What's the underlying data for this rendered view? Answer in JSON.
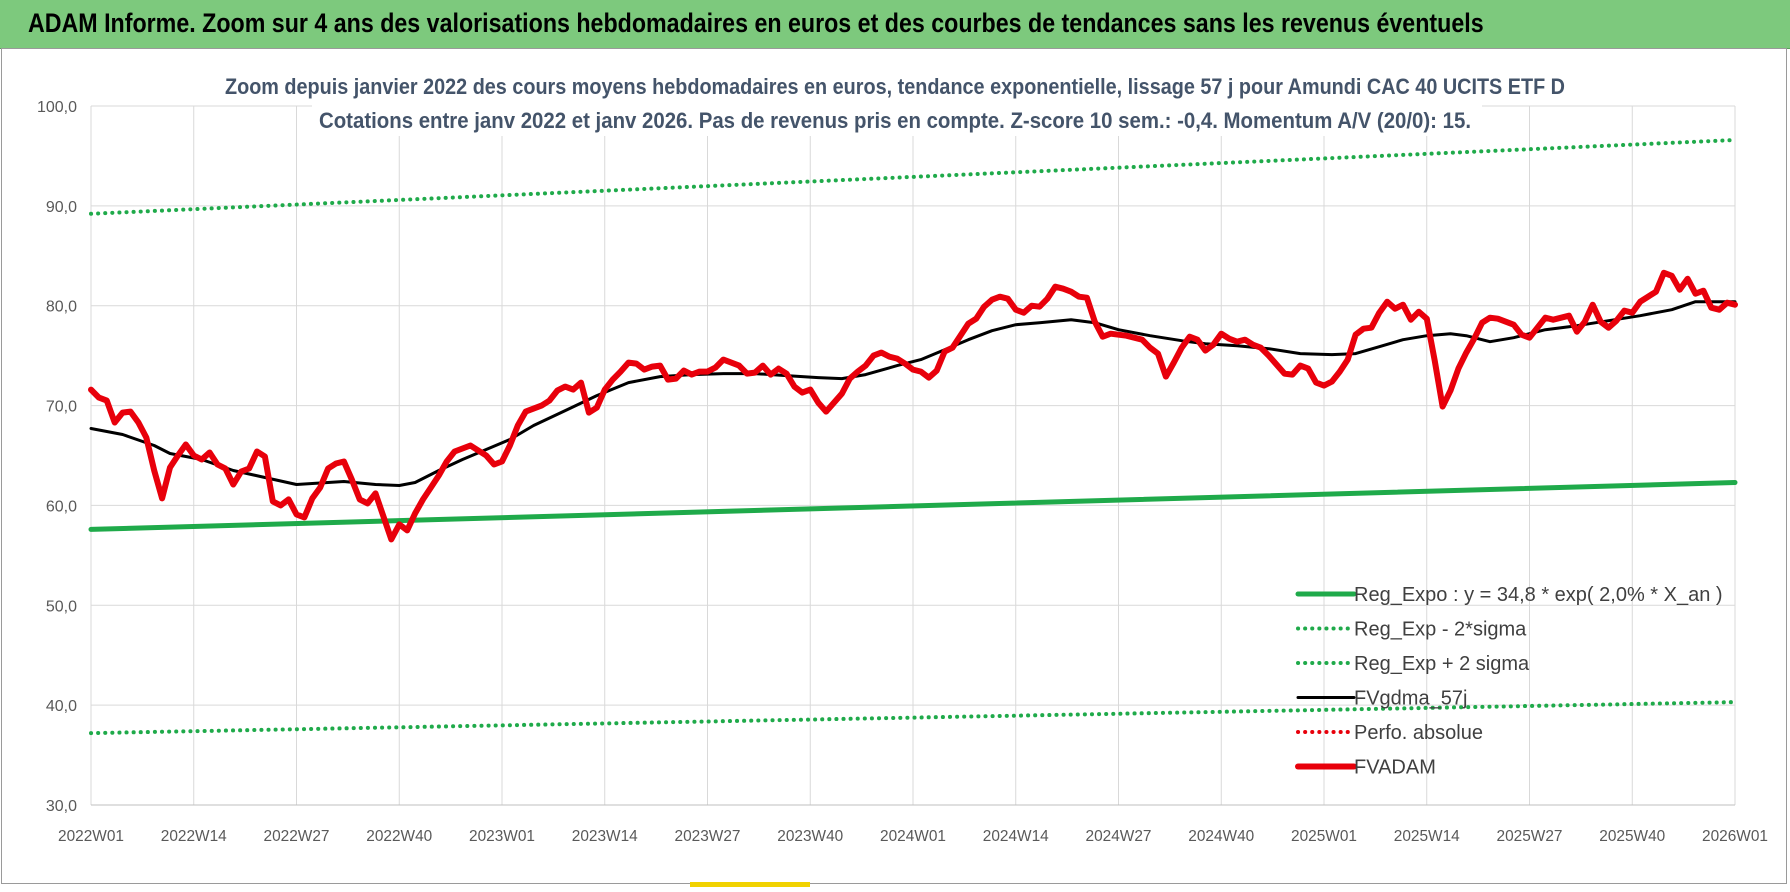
{
  "header": {
    "title": "ADAM Informe. Zoom sur 4 ans des valorisations hebdomadaires en euros et des courbes de tendances sans les revenus éventuels"
  },
  "chart_data": {
    "type": "line",
    "title": "Zoom depuis janvier 2022 des cours moyens hebdomadaires en euros, tendance exponentielle, lissage 57 j pour Amundi CAC 40 UCITS ETF D",
    "subtitle": "Cotations entre janv 2022 et janv 2026. Pas de revenus pris en compte. Z-score 10 sem.: -0,4. Momentum A/V (20/0): 15.",
    "xlabel": "",
    "ylabel": "",
    "ylim": [
      30,
      100
    ],
    "y_ticks": [
      "30,0",
      "40,0",
      "50,0",
      "60,0",
      "70,0",
      "80,0",
      "90,0",
      "100,0"
    ],
    "x_ticks": [
      "2022W01",
      "2022W14",
      "2022W27",
      "2022W40",
      "2023W01",
      "2023W14",
      "2023W27",
      "2023W40",
      "2024W01",
      "2024W14",
      "2024W27",
      "2024W40",
      "2025W01",
      "2025W14",
      "2025W27",
      "2025W40",
      "2026W01"
    ],
    "x_range_weeks": [
      0,
      208
    ],
    "grid": true,
    "legend_position": "bottom-right",
    "series": [
      {
        "name": "Reg_Expo : y = 34,8 * exp( 2,0% *  X_an )",
        "style": "solid",
        "color": "#1faa4a",
        "width": 5,
        "points": [
          [
            0,
            57.6
          ],
          [
            208,
            62.3
          ]
        ]
      },
      {
        "name": "Reg_Exp - 2*sigma",
        "style": "dotted",
        "color": "#1faa4a",
        "width": 4,
        "points": [
          [
            0,
            37.2
          ],
          [
            208,
            40.3
          ]
        ]
      },
      {
        "name": "Reg_Exp + 2 sigma",
        "style": "dotted",
        "color": "#1faa4a",
        "width": 4,
        "points": [
          [
            0,
            89.2
          ],
          [
            208,
            96.6
          ]
        ]
      },
      {
        "name": "FVgdma_57j",
        "style": "solid",
        "color": "#000000",
        "width": 3,
        "points": [
          [
            0,
            67.7
          ],
          [
            4,
            67.1
          ],
          [
            8,
            66.0
          ],
          [
            10,
            65.2
          ],
          [
            14,
            64.6
          ],
          [
            18,
            63.5
          ],
          [
            22,
            62.8
          ],
          [
            26,
            62.1
          ],
          [
            28,
            62.2
          ],
          [
            32,
            62.4
          ],
          [
            36,
            62.1
          ],
          [
            39,
            62.0
          ],
          [
            41,
            62.3
          ],
          [
            44,
            63.5
          ],
          [
            47,
            64.6
          ],
          [
            50,
            65.6
          ],
          [
            53,
            66.6
          ],
          [
            56,
            68.0
          ],
          [
            60,
            69.5
          ],
          [
            64,
            71.0
          ],
          [
            68,
            72.3
          ],
          [
            72,
            72.9
          ],
          [
            76,
            73.1
          ],
          [
            80,
            73.2
          ],
          [
            84,
            73.2
          ],
          [
            88,
            73.0
          ],
          [
            92,
            72.8
          ],
          [
            95,
            72.7
          ],
          [
            98,
            73.1
          ],
          [
            102,
            74.0
          ],
          [
            105,
            74.6
          ],
          [
            108,
            75.6
          ],
          [
            111,
            76.6
          ],
          [
            114,
            77.5
          ],
          [
            117,
            78.1
          ],
          [
            120,
            78.3
          ],
          [
            124,
            78.6
          ],
          [
            127,
            78.3
          ],
          [
            130,
            77.6
          ],
          [
            134,
            77.0
          ],
          [
            138,
            76.5
          ],
          [
            141,
            76.2
          ],
          [
            145,
            76.0
          ],
          [
            149,
            75.7
          ],
          [
            153,
            75.2
          ],
          [
            157,
            75.1
          ],
          [
            160,
            75.2
          ],
          [
            163,
            75.9
          ],
          [
            166,
            76.6
          ],
          [
            169,
            77.0
          ],
          [
            172,
            77.2
          ],
          [
            174,
            77.0
          ],
          [
            177,
            76.4
          ],
          [
            180,
            76.8
          ],
          [
            184,
            77.6
          ],
          [
            188,
            78.0
          ],
          [
            192,
            78.5
          ],
          [
            196,
            79.0
          ],
          [
            200,
            79.6
          ],
          [
            203,
            80.4
          ],
          [
            206,
            80.4
          ],
          [
            208,
            80.4
          ]
        ]
      },
      {
        "name": "Perfo. absolue",
        "style": "dotted",
        "color": "#e8000b",
        "width": 3,
        "points": []
      },
      {
        "name": "FVADAM",
        "style": "solid",
        "color": "#e8000b",
        "width": 6,
        "points": [
          [
            0,
            71.6
          ],
          [
            1,
            70.8
          ],
          [
            2,
            70.5
          ],
          [
            3,
            68.3
          ],
          [
            4,
            69.3
          ],
          [
            5,
            69.4
          ],
          [
            6,
            68.3
          ],
          [
            7,
            66.8
          ],
          [
            8,
            63.5
          ],
          [
            9,
            60.7
          ],
          [
            10,
            63.8
          ],
          [
            11,
            65.0
          ],
          [
            12,
            66.1
          ],
          [
            13,
            65.0
          ],
          [
            14,
            64.6
          ],
          [
            15,
            65.3
          ],
          [
            16,
            64.1
          ],
          [
            17,
            63.7
          ],
          [
            18,
            62.1
          ],
          [
            19,
            63.4
          ],
          [
            20,
            63.7
          ],
          [
            21,
            65.4
          ],
          [
            22,
            64.9
          ],
          [
            23,
            60.4
          ],
          [
            24,
            60.0
          ],
          [
            25,
            60.6
          ],
          [
            26,
            59.1
          ],
          [
            27,
            58.8
          ],
          [
            28,
            60.7
          ],
          [
            29,
            61.8
          ],
          [
            30,
            63.7
          ],
          [
            31,
            64.2
          ],
          [
            32,
            64.4
          ],
          [
            33,
            62.6
          ],
          [
            34,
            60.6
          ],
          [
            35,
            60.2
          ],
          [
            36,
            61.2
          ],
          [
            37,
            58.9
          ],
          [
            38,
            56.6
          ],
          [
            39,
            58.1
          ],
          [
            40,
            57.5
          ],
          [
            41,
            59.2
          ],
          [
            42,
            60.6
          ],
          [
            43,
            61.8
          ],
          [
            44,
            63.0
          ],
          [
            45,
            64.4
          ],
          [
            46,
            65.4
          ],
          [
            47,
            65.7
          ],
          [
            48,
            66.0
          ],
          [
            49,
            65.5
          ],
          [
            50,
            65.0
          ],
          [
            51,
            64.1
          ],
          [
            52,
            64.4
          ],
          [
            53,
            66.0
          ],
          [
            54,
            68.0
          ],
          [
            55,
            69.4
          ],
          [
            56,
            69.7
          ],
          [
            57,
            70.0
          ],
          [
            58,
            70.5
          ],
          [
            59,
            71.5
          ],
          [
            60,
            71.9
          ],
          [
            61,
            71.6
          ],
          [
            62,
            72.3
          ],
          [
            63,
            69.3
          ],
          [
            64,
            69.8
          ],
          [
            65,
            71.6
          ],
          [
            66,
            72.6
          ],
          [
            67,
            73.4
          ],
          [
            68,
            74.3
          ],
          [
            69,
            74.2
          ],
          [
            70,
            73.6
          ],
          [
            71,
            73.9
          ],
          [
            72,
            74.0
          ],
          [
            73,
            72.6
          ],
          [
            74,
            72.7
          ],
          [
            75,
            73.5
          ],
          [
            76,
            73.1
          ],
          [
            77,
            73.4
          ],
          [
            78,
            73.4
          ],
          [
            79,
            73.8
          ],
          [
            80,
            74.6
          ],
          [
            81,
            74.3
          ],
          [
            82,
            74.0
          ],
          [
            83,
            73.2
          ],
          [
            84,
            73.3
          ],
          [
            85,
            74.0
          ],
          [
            86,
            73.1
          ],
          [
            87,
            73.7
          ],
          [
            88,
            73.2
          ],
          [
            89,
            71.9
          ],
          [
            90,
            71.3
          ],
          [
            91,
            71.6
          ],
          [
            92,
            70.3
          ],
          [
            93,
            69.4
          ],
          [
            94,
            70.3
          ],
          [
            95,
            71.2
          ],
          [
            96,
            72.7
          ],
          [
            97,
            73.4
          ],
          [
            98,
            74.0
          ],
          [
            99,
            75.0
          ],
          [
            100,
            75.3
          ],
          [
            101,
            74.9
          ],
          [
            102,
            74.7
          ],
          [
            103,
            74.2
          ],
          [
            104,
            73.6
          ],
          [
            105,
            73.4
          ],
          [
            106,
            72.8
          ],
          [
            107,
            73.5
          ],
          [
            108,
            75.4
          ],
          [
            109,
            75.8
          ],
          [
            110,
            77.0
          ],
          [
            111,
            78.2
          ],
          [
            112,
            78.7
          ],
          [
            113,
            79.9
          ],
          [
            114,
            80.6
          ],
          [
            115,
            80.9
          ],
          [
            116,
            80.7
          ],
          [
            117,
            79.6
          ],
          [
            118,
            79.3
          ],
          [
            119,
            80.0
          ],
          [
            120,
            79.9
          ],
          [
            121,
            80.7
          ],
          [
            122,
            81.9
          ],
          [
            123,
            81.7
          ],
          [
            124,
            81.4
          ],
          [
            125,
            80.9
          ],
          [
            126,
            80.8
          ],
          [
            127,
            78.4
          ],
          [
            128,
            76.9
          ],
          [
            129,
            77.2
          ],
          [
            130,
            77.1
          ],
          [
            131,
            77.0
          ],
          [
            132,
            76.8
          ],
          [
            133,
            76.6
          ],
          [
            134,
            75.8
          ],
          [
            135,
            75.2
          ],
          [
            136,
            72.9
          ],
          [
            137,
            74.3
          ],
          [
            138,
            75.8
          ],
          [
            139,
            76.9
          ],
          [
            140,
            76.6
          ],
          [
            141,
            75.5
          ],
          [
            142,
            76.1
          ],
          [
            143,
            77.2
          ],
          [
            144,
            76.7
          ],
          [
            145,
            76.4
          ],
          [
            146,
            76.6
          ],
          [
            147,
            76.1
          ],
          [
            148,
            75.8
          ],
          [
            149,
            75.0
          ],
          [
            150,
            74.1
          ],
          [
            151,
            73.2
          ],
          [
            152,
            73.1
          ],
          [
            153,
            74.0
          ],
          [
            154,
            73.7
          ],
          [
            155,
            72.3
          ],
          [
            156,
            72.0
          ],
          [
            157,
            72.4
          ],
          [
            158,
            73.4
          ],
          [
            159,
            74.6
          ],
          [
            160,
            77.1
          ],
          [
            161,
            77.7
          ],
          [
            162,
            77.8
          ],
          [
            163,
            79.3
          ],
          [
            164,
            80.4
          ],
          [
            165,
            79.7
          ],
          [
            166,
            80.1
          ],
          [
            167,
            78.6
          ],
          [
            168,
            79.4
          ],
          [
            169,
            78.7
          ],
          [
            170,
            74.5
          ],
          [
            171,
            69.9
          ],
          [
            172,
            71.5
          ],
          [
            173,
            73.7
          ],
          [
            174,
            75.3
          ],
          [
            175,
            76.7
          ],
          [
            176,
            78.3
          ],
          [
            177,
            78.8
          ],
          [
            178,
            78.7
          ],
          [
            179,
            78.4
          ],
          [
            180,
            78.1
          ],
          [
            181,
            77.1
          ],
          [
            182,
            76.8
          ],
          [
            183,
            77.8
          ],
          [
            184,
            78.8
          ],
          [
            185,
            78.6
          ],
          [
            186,
            78.8
          ],
          [
            187,
            79.0
          ],
          [
            188,
            77.4
          ],
          [
            189,
            78.4
          ],
          [
            190,
            80.1
          ],
          [
            191,
            78.4
          ],
          [
            192,
            77.8
          ],
          [
            193,
            78.5
          ],
          [
            194,
            79.5
          ],
          [
            195,
            79.3
          ],
          [
            196,
            80.4
          ],
          [
            197,
            80.9
          ],
          [
            198,
            81.4
          ],
          [
            199,
            83.3
          ],
          [
            200,
            83.0
          ],
          [
            201,
            81.6
          ],
          [
            202,
            82.7
          ],
          [
            203,
            81.2
          ],
          [
            204,
            81.5
          ],
          [
            205,
            79.8
          ],
          [
            206,
            79.6
          ],
          [
            207,
            80.3
          ],
          [
            208,
            80.1
          ]
        ]
      }
    ]
  }
}
